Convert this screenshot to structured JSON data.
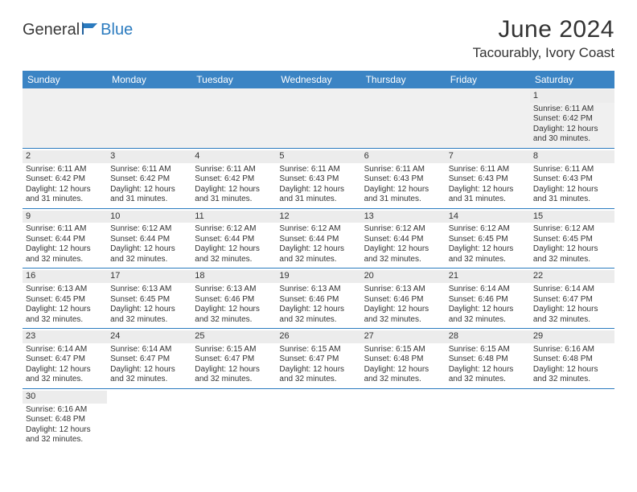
{
  "logo": {
    "general": "General",
    "blue": "Blue"
  },
  "title": "June 2024",
  "location": "Tacourably, Ivory Coast",
  "colors": {
    "header_bg": "#3b84c4",
    "header_text": "#ffffff",
    "accent": "#2b7bbf",
    "daynum_bg": "#ececec",
    "empty_bg": "#f0f0f0",
    "text": "#333333"
  },
  "weekdays": [
    "Sunday",
    "Monday",
    "Tuesday",
    "Wednesday",
    "Thursday",
    "Friday",
    "Saturday"
  ],
  "layout": {
    "columns": 7,
    "rows": 6,
    "first_day_col": 6
  },
  "labels": {
    "sunrise": "Sunrise:",
    "sunset": "Sunset:",
    "daylight": "Daylight:",
    "hours": "hours",
    "and": "and",
    "minutes": "minutes."
  },
  "days": [
    {
      "n": 1,
      "sunrise": "6:11 AM",
      "sunset": "6:42 PM",
      "dl_h": 12,
      "dl_m": 30
    },
    {
      "n": 2,
      "sunrise": "6:11 AM",
      "sunset": "6:42 PM",
      "dl_h": 12,
      "dl_m": 31
    },
    {
      "n": 3,
      "sunrise": "6:11 AM",
      "sunset": "6:42 PM",
      "dl_h": 12,
      "dl_m": 31
    },
    {
      "n": 4,
      "sunrise": "6:11 AM",
      "sunset": "6:42 PM",
      "dl_h": 12,
      "dl_m": 31
    },
    {
      "n": 5,
      "sunrise": "6:11 AM",
      "sunset": "6:43 PM",
      "dl_h": 12,
      "dl_m": 31
    },
    {
      "n": 6,
      "sunrise": "6:11 AM",
      "sunset": "6:43 PM",
      "dl_h": 12,
      "dl_m": 31
    },
    {
      "n": 7,
      "sunrise": "6:11 AM",
      "sunset": "6:43 PM",
      "dl_h": 12,
      "dl_m": 31
    },
    {
      "n": 8,
      "sunrise": "6:11 AM",
      "sunset": "6:43 PM",
      "dl_h": 12,
      "dl_m": 31
    },
    {
      "n": 9,
      "sunrise": "6:11 AM",
      "sunset": "6:44 PM",
      "dl_h": 12,
      "dl_m": 32
    },
    {
      "n": 10,
      "sunrise": "6:12 AM",
      "sunset": "6:44 PM",
      "dl_h": 12,
      "dl_m": 32
    },
    {
      "n": 11,
      "sunrise": "6:12 AM",
      "sunset": "6:44 PM",
      "dl_h": 12,
      "dl_m": 32
    },
    {
      "n": 12,
      "sunrise": "6:12 AM",
      "sunset": "6:44 PM",
      "dl_h": 12,
      "dl_m": 32
    },
    {
      "n": 13,
      "sunrise": "6:12 AM",
      "sunset": "6:44 PM",
      "dl_h": 12,
      "dl_m": 32
    },
    {
      "n": 14,
      "sunrise": "6:12 AM",
      "sunset": "6:45 PM",
      "dl_h": 12,
      "dl_m": 32
    },
    {
      "n": 15,
      "sunrise": "6:12 AM",
      "sunset": "6:45 PM",
      "dl_h": 12,
      "dl_m": 32
    },
    {
      "n": 16,
      "sunrise": "6:13 AM",
      "sunset": "6:45 PM",
      "dl_h": 12,
      "dl_m": 32
    },
    {
      "n": 17,
      "sunrise": "6:13 AM",
      "sunset": "6:45 PM",
      "dl_h": 12,
      "dl_m": 32
    },
    {
      "n": 18,
      "sunrise": "6:13 AM",
      "sunset": "6:46 PM",
      "dl_h": 12,
      "dl_m": 32
    },
    {
      "n": 19,
      "sunrise": "6:13 AM",
      "sunset": "6:46 PM",
      "dl_h": 12,
      "dl_m": 32
    },
    {
      "n": 20,
      "sunrise": "6:13 AM",
      "sunset": "6:46 PM",
      "dl_h": 12,
      "dl_m": 32
    },
    {
      "n": 21,
      "sunrise": "6:14 AM",
      "sunset": "6:46 PM",
      "dl_h": 12,
      "dl_m": 32
    },
    {
      "n": 22,
      "sunrise": "6:14 AM",
      "sunset": "6:47 PM",
      "dl_h": 12,
      "dl_m": 32
    },
    {
      "n": 23,
      "sunrise": "6:14 AM",
      "sunset": "6:47 PM",
      "dl_h": 12,
      "dl_m": 32
    },
    {
      "n": 24,
      "sunrise": "6:14 AM",
      "sunset": "6:47 PM",
      "dl_h": 12,
      "dl_m": 32
    },
    {
      "n": 25,
      "sunrise": "6:15 AM",
      "sunset": "6:47 PM",
      "dl_h": 12,
      "dl_m": 32
    },
    {
      "n": 26,
      "sunrise": "6:15 AM",
      "sunset": "6:47 PM",
      "dl_h": 12,
      "dl_m": 32
    },
    {
      "n": 27,
      "sunrise": "6:15 AM",
      "sunset": "6:48 PM",
      "dl_h": 12,
      "dl_m": 32
    },
    {
      "n": 28,
      "sunrise": "6:15 AM",
      "sunset": "6:48 PM",
      "dl_h": 12,
      "dl_m": 32
    },
    {
      "n": 29,
      "sunrise": "6:16 AM",
      "sunset": "6:48 PM",
      "dl_h": 12,
      "dl_m": 32
    },
    {
      "n": 30,
      "sunrise": "6:16 AM",
      "sunset": "6:48 PM",
      "dl_h": 12,
      "dl_m": 32
    }
  ]
}
